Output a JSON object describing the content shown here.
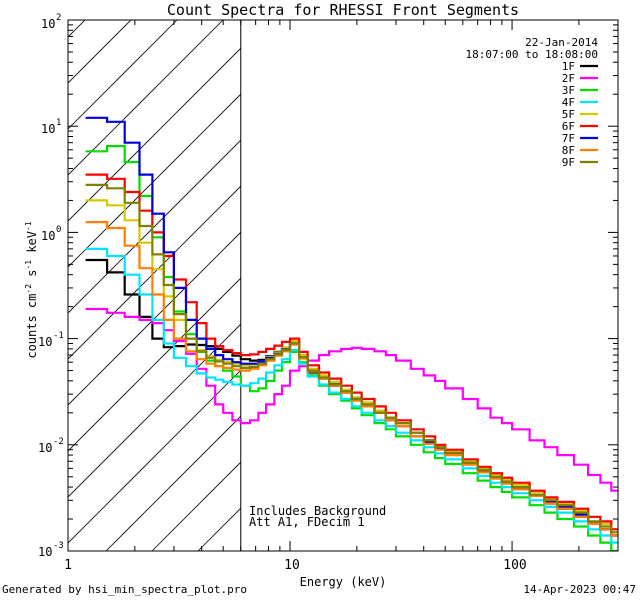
{
  "footer": {
    "left": "Generated by hsi_min_spectra_plot.pro",
    "right": "14-Apr-2023 00:47"
  },
  "chart_data": {
    "type": "line",
    "scale": "log-log",
    "title": "Count Spectra for RHESSI Front Segments",
    "xlabel": "Energy (keV)",
    "ylabel_parts": [
      "counts cm",
      "-2",
      " s",
      "-1",
      " keV",
      "-1"
    ],
    "xlim": [
      1,
      300
    ],
    "ylim": [
      0.001,
      100
    ],
    "x_tick_labels": [
      {
        "value": 1,
        "label": "1"
      },
      {
        "value": 10,
        "label": "10"
      },
      {
        "value": 100,
        "label": "100"
      }
    ],
    "y_tick_labels": [
      {
        "value": 0.001,
        "base": "10",
        "exp": "-3"
      },
      {
        "value": 0.01,
        "base": "10",
        "exp": "-2"
      },
      {
        "value": 0.1,
        "base": "10",
        "exp": "-1"
      },
      {
        "value": 1,
        "base": "10",
        "exp": "0"
      },
      {
        "value": 10,
        "base": "10",
        "exp": "1"
      },
      {
        "value": 100,
        "base": "10",
        "exp": "2"
      }
    ],
    "legend": {
      "placement": "top-right",
      "date": "22-Jan-2014",
      "time_range": "18:07:00 to 18:08:00"
    },
    "annotations": [
      "Includes Background",
      "Att A1, FDecim 1"
    ],
    "attenuator_cutoff_kev": 6,
    "hatched_region": [
      1,
      6
    ],
    "energy_bins_kev": [
      1.2,
      1.5,
      1.8,
      2.1,
      2.4,
      2.7,
      3.0,
      3.4,
      3.8,
      4.2,
      4.6,
      5.0,
      5.5,
      6.0,
      6.6,
      7.2,
      7.8,
      8.5,
      9.2,
      10.0,
      11.0,
      12.0,
      13.5,
      15.0,
      17.0,
      19.0,
      21.0,
      24.0,
      27.0,
      30.0,
      35.0,
      40.0,
      45.0,
      50.0,
      60.0,
      70.0,
      80.0,
      90.0,
      100.0,
      120.0,
      140.0,
      160.0,
      190.0,
      220.0,
      250.0,
      280.0
    ],
    "series": [
      {
        "name": "1F",
        "color": "#000000",
        "values": [
          0.55,
          0.42,
          0.26,
          0.16,
          0.1,
          0.083,
          0.085,
          0.088,
          0.087,
          0.085,
          0.08,
          0.075,
          0.069,
          0.064,
          0.062,
          0.063,
          0.068,
          0.075,
          0.082,
          0.09,
          0.066,
          0.048,
          0.044,
          0.038,
          0.032,
          0.027,
          0.024,
          0.021,
          0.018,
          0.016,
          0.013,
          0.011,
          0.0095,
          0.0085,
          0.0068,
          0.0058,
          0.005,
          0.0046,
          0.004,
          0.0033,
          0.0028,
          0.0025,
          0.0021,
          0.0018,
          0.0016,
          0.0014
        ]
      },
      {
        "name": "2F",
        "color": "#ff00ff",
        "values": [
          0.19,
          0.175,
          0.16,
          0.15,
          0.14,
          0.12,
          0.095,
          0.072,
          0.052,
          0.036,
          0.024,
          0.02,
          0.017,
          0.016,
          0.017,
          0.02,
          0.024,
          0.03,
          0.036,
          0.05,
          0.055,
          0.062,
          0.07,
          0.076,
          0.08,
          0.082,
          0.08,
          0.076,
          0.07,
          0.062,
          0.052,
          0.045,
          0.04,
          0.034,
          0.027,
          0.022,
          0.018,
          0.016,
          0.014,
          0.011,
          0.0095,
          0.008,
          0.0065,
          0.0052,
          0.0044,
          0.0037
        ]
      },
      {
        "name": "3F",
        "color": "#00dd00",
        "values": [
          5.8,
          6.5,
          4.6,
          2.2,
          0.9,
          0.38,
          0.18,
          0.11,
          0.075,
          0.062,
          0.055,
          0.05,
          0.044,
          0.036,
          0.032,
          0.034,
          0.04,
          0.05,
          0.06,
          0.075,
          0.06,
          0.045,
          0.036,
          0.03,
          0.026,
          0.022,
          0.019,
          0.016,
          0.014,
          0.012,
          0.01,
          0.0085,
          0.0075,
          0.0066,
          0.0054,
          0.0046,
          0.004,
          0.0036,
          0.0032,
          0.0027,
          0.0023,
          0.002,
          0.0017,
          0.0014,
          0.0012,
          0.001
        ]
      },
      {
        "name": "4F",
        "color": "#00e5ff",
        "values": [
          0.7,
          0.6,
          0.4,
          0.26,
          0.15,
          0.09,
          0.066,
          0.055,
          0.047,
          0.043,
          0.041,
          0.039,
          0.037,
          0.036,
          0.038,
          0.042,
          0.048,
          0.056,
          0.064,
          0.078,
          0.058,
          0.044,
          0.037,
          0.031,
          0.027,
          0.023,
          0.02,
          0.017,
          0.015,
          0.013,
          0.011,
          0.0095,
          0.0083,
          0.0073,
          0.006,
          0.0051,
          0.0044,
          0.004,
          0.0035,
          0.003,
          0.0026,
          0.0023,
          0.0019,
          0.0016,
          0.0014,
          0.0012
        ]
      },
      {
        "name": "5F",
        "color": "#d6c800",
        "values": [
          2.0,
          1.8,
          1.3,
          0.8,
          0.45,
          0.25,
          0.15,
          0.1,
          0.078,
          0.068,
          0.063,
          0.06,
          0.058,
          0.056,
          0.057,
          0.061,
          0.067,
          0.074,
          0.082,
          0.095,
          0.07,
          0.052,
          0.045,
          0.039,
          0.033,
          0.028,
          0.025,
          0.021,
          0.018,
          0.016,
          0.013,
          0.011,
          0.0098,
          0.0087,
          0.007,
          0.006,
          0.0052,
          0.0047,
          0.0042,
          0.0036,
          0.0031,
          0.0028,
          0.0024,
          0.0021,
          0.0018,
          0.0016
        ]
      },
      {
        "name": "6F",
        "color": "#ff0000",
        "values": [
          3.5,
          3.2,
          2.4,
          1.6,
          1.0,
          0.6,
          0.36,
          0.22,
          0.14,
          0.1,
          0.085,
          0.078,
          0.073,
          0.07,
          0.071,
          0.075,
          0.08,
          0.086,
          0.093,
          0.1,
          0.075,
          0.056,
          0.048,
          0.042,
          0.036,
          0.031,
          0.027,
          0.023,
          0.02,
          0.017,
          0.014,
          0.012,
          0.01,
          0.009,
          0.0073,
          0.0062,
          0.0054,
          0.0049,
          0.0044,
          0.0037,
          0.0032,
          0.0029,
          0.0025,
          0.0021,
          0.0019,
          0.0016
        ]
      },
      {
        "name": "7F",
        "color": "#0000dd",
        "values": [
          12.0,
          11.0,
          7.0,
          3.5,
          1.5,
          0.65,
          0.3,
          0.15,
          0.1,
          0.08,
          0.07,
          0.064,
          0.06,
          0.058,
          0.058,
          0.061,
          0.066,
          0.072,
          0.079,
          0.09,
          0.066,
          0.05,
          0.042,
          0.036,
          0.031,
          0.027,
          0.023,
          0.02,
          0.017,
          0.015,
          0.012,
          0.0105,
          0.0093,
          0.0082,
          0.0066,
          0.0056,
          0.0049,
          0.0044,
          0.0039,
          0.0033,
          0.0029,
          0.0026,
          0.0022,
          0.0018,
          0.0016,
          0.0014
        ]
      },
      {
        "name": "8F",
        "color": "#ff8000",
        "values": [
          1.25,
          1.1,
          0.75,
          0.46,
          0.26,
          0.15,
          0.1,
          0.076,
          0.064,
          0.058,
          0.055,
          0.053,
          0.051,
          0.05,
          0.052,
          0.056,
          0.062,
          0.069,
          0.076,
          0.088,
          0.065,
          0.049,
          0.042,
          0.036,
          0.031,
          0.026,
          0.023,
          0.02,
          0.017,
          0.015,
          0.012,
          0.0102,
          0.009,
          0.008,
          0.0065,
          0.0055,
          0.0048,
          0.0043,
          0.0038,
          0.0033,
          0.0028,
          0.0025,
          0.0021,
          0.0018,
          0.0016,
          0.0014
        ]
      },
      {
        "name": "9F",
        "color": "#808000",
        "values": [
          2.8,
          2.6,
          1.9,
          1.15,
          0.62,
          0.32,
          0.17,
          0.1,
          0.076,
          0.066,
          0.061,
          0.058,
          0.055,
          0.053,
          0.054,
          0.058,
          0.064,
          0.071,
          0.078,
          0.09,
          0.067,
          0.05,
          0.043,
          0.037,
          0.032,
          0.027,
          0.024,
          0.02,
          0.018,
          0.016,
          0.013,
          0.011,
          0.0095,
          0.0084,
          0.0068,
          0.0058,
          0.005,
          0.0045,
          0.004,
          0.0034,
          0.003,
          0.0027,
          0.0023,
          0.0019,
          0.0017,
          0.0015
        ]
      }
    ]
  }
}
